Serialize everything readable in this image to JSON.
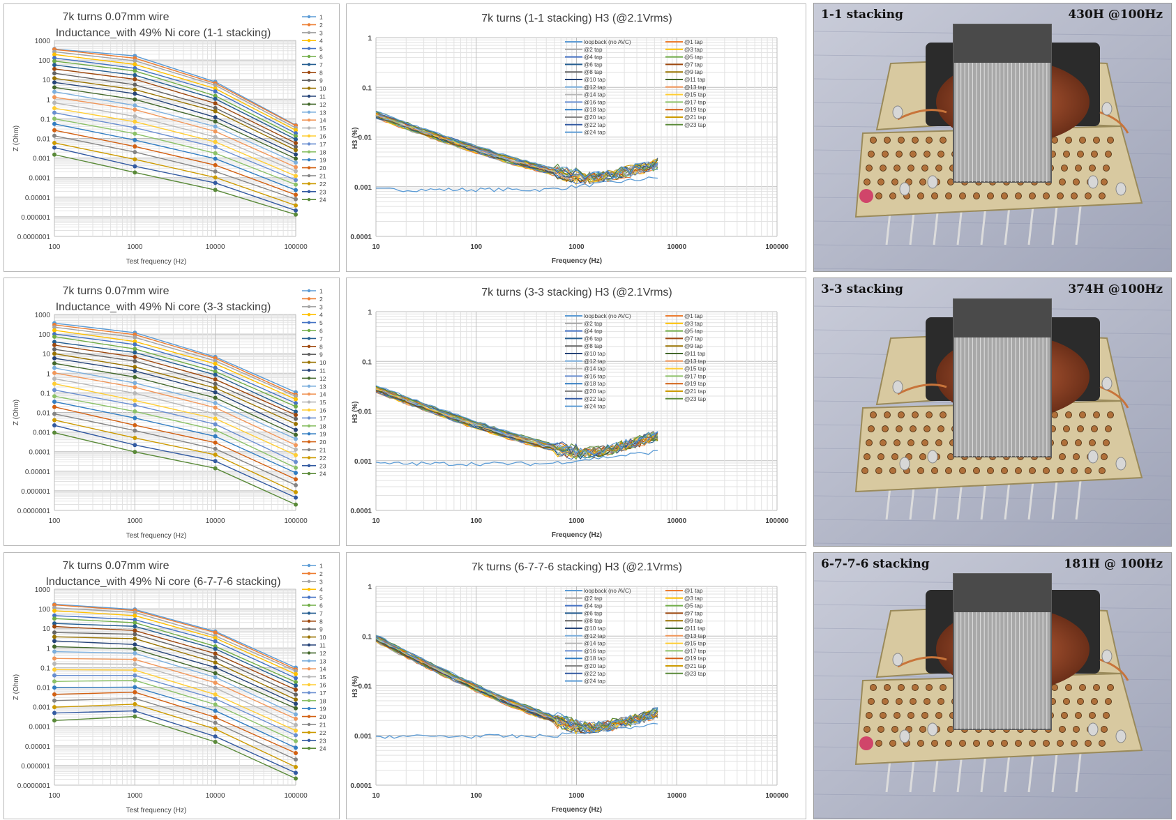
{
  "palette": [
    "#5b9bd5",
    "#ed7d31",
    "#a5a5a5",
    "#ffc000",
    "#4472c4",
    "#70ad47",
    "#255e91",
    "#9e480e",
    "#636363",
    "#997300",
    "#264478",
    "#43682b",
    "#7cafdd",
    "#f1975a",
    "#b7b7b7",
    "#ffcd33",
    "#698ed0",
    "#8cc168",
    "#327dc2",
    "#d26012",
    "#848484",
    "#cc9a00",
    "#335aa1",
    "#5a8a39"
  ],
  "photos": [
    {
      "left_label": "1-1 stacking",
      "right_label": "430H @100Hz"
    },
    {
      "left_label": "3-3 stacking",
      "right_label": "374H @100Hz"
    },
    {
      "left_label": "6-7-7-6 stacking",
      "right_label": "181H @ 100Hz"
    }
  ],
  "chart_data": [
    {
      "type": "line",
      "panel": "row1-impedance",
      "title": [
        "7k turns 0.07mm wire",
        "Inductance_with 49% Ni core (1-1 stacking)"
      ],
      "xlabel": "Test frequency (Hz)",
      "ylabel": "Z (Ohm)",
      "x_scale": "log",
      "y_scale": "log",
      "x_ticks": [
        "100",
        "1000",
        "10000",
        "100000"
      ],
      "y_ticks": [
        "0.0000001",
        "0.000001",
        "0.00001",
        "0.0001",
        "0.001",
        "0.01",
        "0.1",
        "1",
        "10",
        "100",
        "1000"
      ],
      "xlim": [
        100,
        100000
      ],
      "ylim": [
        1e-07,
        1000
      ],
      "x": [
        100,
        1000,
        10000,
        100000
      ],
      "legend": [
        "1",
        "2",
        "3",
        "4",
        "5",
        "6",
        "7",
        "8",
        "9",
        "10",
        "11",
        "12",
        "13",
        "14",
        "15",
        "16",
        "17",
        "18",
        "19",
        "20",
        "21",
        "22",
        "23",
        "24"
      ],
      "series_top": [
        400,
        150,
        8,
        0.05
      ],
      "series_bottom": [
        0.0015,
        0.00018,
        2.5e-05,
        1.2e-06
      ]
    },
    {
      "type": "line",
      "panel": "row1-h3",
      "title": "7k turns (1-1 stacking) H3 (@2.1Vrms)",
      "xlabel": "Frequency (Hz)",
      "ylabel": "H3 (%)",
      "x_scale": "log",
      "y_scale": "log",
      "x_ticks": [
        "10",
        "100",
        "1000",
        "10000",
        "100000"
      ],
      "y_ticks": [
        "0.0001",
        "0.001",
        "0.01",
        "0.1",
        "1"
      ],
      "xlim": [
        10,
        100000
      ],
      "ylim": [
        0.0001,
        1
      ],
      "legend_col1": [
        "loopback (no AVC)",
        "@2 tap",
        "@4 tap",
        "@6 tap",
        "@8 tap",
        "@10 tap",
        "@12 tap",
        "@14 tap",
        "@16 tap",
        "@18 tap",
        "@20 tap",
        "@22 tap",
        "@24 tap"
      ],
      "legend_col2": [
        "@1 tap",
        "@3 tap",
        "@5 tap",
        "@7 tap",
        "@9 tap",
        "@11 tap",
        "@13 tap",
        "@15 tap",
        "@17 tap",
        "@19 tap",
        "@21 tap",
        "@23 tap"
      ],
      "loopback_level": 0.001,
      "tap_start": 0.028,
      "tap_min": 0.0015,
      "tap_min_freq": 1300,
      "tap_end": 0.003
    },
    {
      "type": "line",
      "panel": "row2-impedance",
      "title": [
        "7k turns 0.07mm wire",
        "Inductance_with 49% Ni core (3-3 stacking)"
      ],
      "xlabel": "Test frequency (Hz)",
      "ylabel": "Z (Ohm)",
      "x_scale": "log",
      "y_scale": "log",
      "x_ticks": [
        "100",
        "1000",
        "10000",
        "100000"
      ],
      "y_ticks": [
        "0.0000001",
        "0.000001",
        "0.00001",
        "0.0001",
        "0.001",
        "0.01",
        "0.1",
        "1",
        "10",
        "100",
        "1000"
      ],
      "xlim": [
        100,
        100000
      ],
      "ylim": [
        1e-07,
        1000
      ],
      "x": [
        100,
        1000,
        10000,
        100000
      ],
      "legend": [
        "1",
        "2",
        "3",
        "4",
        "5",
        "6",
        "7",
        "8",
        "9",
        "10",
        "11",
        "12",
        "13",
        "14",
        "15",
        "16",
        "17",
        "18",
        "19",
        "20",
        "21",
        "22",
        "23",
        "24"
      ],
      "series_top": [
        350,
        110,
        7,
        0.1
      ],
      "series_bottom": [
        0.001,
        0.0001,
        1.5e-05,
        2e-07
      ]
    },
    {
      "type": "line",
      "panel": "row2-h3",
      "title": "7k turns (3-3 stacking) H3 (@2.1Vrms)",
      "xlabel": "Frequency (Hz)",
      "ylabel": "H3 (%)",
      "x_scale": "log",
      "y_scale": "log",
      "x_ticks": [
        "10",
        "100",
        "1000",
        "10000",
        "100000"
      ],
      "y_ticks": [
        "0.0001",
        "0.001",
        "0.01",
        "0.1",
        "1"
      ],
      "xlim": [
        10,
        100000
      ],
      "ylim": [
        0.0001,
        1
      ],
      "legend_col1": [
        "loopback (no AVC)",
        "@2 tap",
        "@4 tap",
        "@6 tap",
        "@8 tap",
        "@10 tap",
        "@12 tap",
        "@14 tap",
        "@16 tap",
        "@18 tap",
        "@20 tap",
        "@22 tap",
        "@24 tap"
      ],
      "legend_col2": [
        "@1 tap",
        "@3 tap",
        "@5 tap",
        "@7 tap",
        "@9 tap",
        "@11 tap",
        "@13 tap",
        "@15 tap",
        "@17 tap",
        "@19 tap",
        "@21 tap",
        "@23 tap"
      ],
      "loopback_level": 0.001,
      "tap_start": 0.028,
      "tap_min": 0.0014,
      "tap_min_freq": 1200,
      "tap_end": 0.0035
    },
    {
      "type": "line",
      "panel": "row3-impedance",
      "title": [
        "7k turns 0.07mm wire",
        "Inductance_with 49% Ni core (6-7-7-6 stacking)"
      ],
      "xlabel": "Test frequency (Hz)",
      "ylabel": "Z (Ohm)",
      "x_scale": "log",
      "y_scale": "log",
      "x_ticks": [
        "100",
        "1000",
        "10000",
        "100000"
      ],
      "y_ticks": [
        "0.0000001",
        "0.000001",
        "0.00001",
        "0.0001",
        "0.001",
        "0.01",
        "0.1",
        "1",
        "10",
        "100",
        "1000"
      ],
      "xlim": [
        100,
        100000
      ],
      "ylim": [
        1e-07,
        1000
      ],
      "x": [
        100,
        1000,
        10000,
        100000
      ],
      "legend": [
        "1",
        "2",
        "3",
        "4",
        "5",
        "6",
        "7",
        "8",
        "9",
        "10",
        "11",
        "12",
        "13",
        "14",
        "15",
        "16",
        "17",
        "18",
        "19",
        "20",
        "21",
        "22",
        "23",
        "24"
      ],
      "series_top": [
        180,
        100,
        7,
        0.1
      ],
      "series_bottom": [
        0.0002,
        0.0003,
        1.5e-05,
        2e-07
      ]
    },
    {
      "type": "line",
      "panel": "row3-h3",
      "title": "7k turns (6-7-7-6 stacking) H3 (@2.1Vrms)",
      "xlabel": "Frequency (Hz)",
      "ylabel": "H3 (%)",
      "x_scale": "log",
      "y_scale": "log",
      "x_ticks": [
        "10",
        "100",
        "1000",
        "10000",
        "100000"
      ],
      "y_ticks": [
        "0.0001",
        "0.001",
        "0.01",
        "0.1",
        "1"
      ],
      "xlim": [
        10,
        100000
      ],
      "ylim": [
        0.0001,
        1
      ],
      "legend_col1": [
        "loopback (no AVC)",
        "@2 tap",
        "@4 tap",
        "@6 tap",
        "@8 tap",
        "@10 tap",
        "@12 tap",
        "@14 tap",
        "@16 tap",
        "@18 tap",
        "@20 tap",
        "@22 tap",
        "@24 tap"
      ],
      "legend_col2": [
        "@1 tap",
        "@3 tap",
        "@5 tap",
        "@7 tap",
        "@9 tap",
        "@11 tap",
        "@13 tap",
        "@15 tap",
        "@17 tap",
        "@19 tap",
        "@21 tap",
        "@23 tap"
      ],
      "loopback_level": 0.0011,
      "tap_start": 0.09,
      "tap_min": 0.0014,
      "tap_min_freq": 1300,
      "tap_end": 0.003
    }
  ]
}
